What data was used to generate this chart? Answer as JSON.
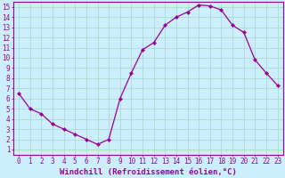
{
  "x": [
    0,
    1,
    2,
    3,
    4,
    5,
    6,
    7,
    8,
    9,
    10,
    11,
    12,
    13,
    14,
    15,
    16,
    17,
    18,
    19,
    20,
    21,
    22,
    23
  ],
  "y": [
    6.5,
    5.0,
    4.5,
    3.5,
    3.0,
    2.5,
    2.0,
    1.5,
    2.0,
    6.0,
    8.5,
    10.8,
    11.5,
    13.2,
    14.0,
    14.5,
    15.2,
    15.1,
    14.7,
    13.2,
    12.5,
    9.8,
    8.5,
    7.3
  ],
  "line_color": "#990099",
  "marker": "D",
  "marker_size": 2,
  "bg_color": "#cceeff",
  "grid_color": "#aaddcc",
  "xlabel": "Windchill (Refroidissement éolien,°C)",
  "xlabel_fontsize": 6.5,
  "xlim": [
    -0.5,
    23.5
  ],
  "ylim": [
    0.5,
    15.5
  ],
  "yticks": [
    1,
    2,
    3,
    4,
    5,
    6,
    7,
    8,
    9,
    10,
    11,
    12,
    13,
    14,
    15
  ],
  "xticks": [
    0,
    1,
    2,
    3,
    4,
    5,
    6,
    7,
    8,
    9,
    10,
    11,
    12,
    13,
    14,
    15,
    16,
    17,
    18,
    19,
    20,
    21,
    22,
    23
  ],
  "tick_fontsize": 5.5,
  "tick_color": "#990099",
  "spine_color": "#990099",
  "linewidth": 0.9
}
